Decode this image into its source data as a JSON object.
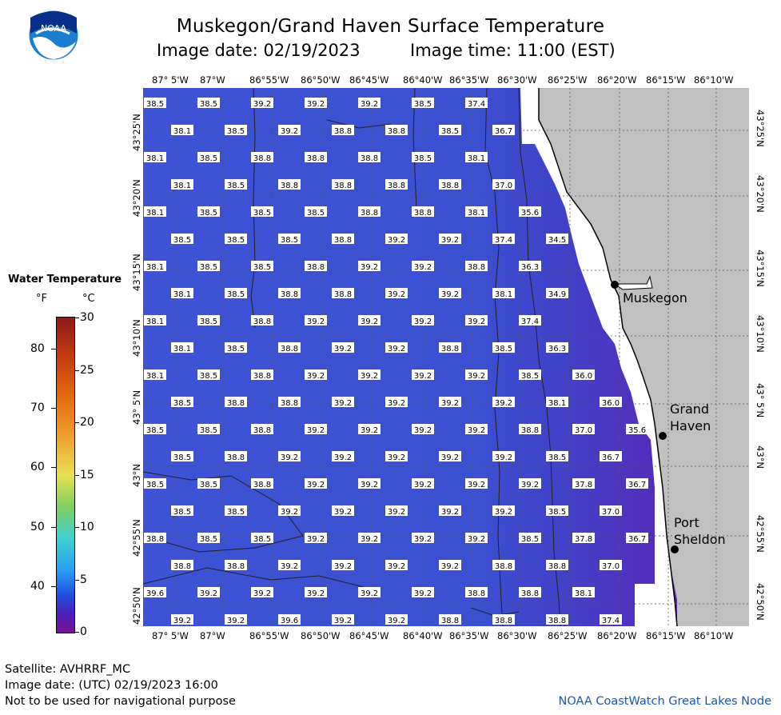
{
  "header": {
    "title": "Muskegon/Grand Haven Surface Temperature",
    "date_line": "Image date: 02/19/2023",
    "time_line": "Image time: 11:00 (EST)"
  },
  "logo": {
    "text": "NOAA"
  },
  "legend": {
    "title": "Water Temperature",
    "unit_f": "°F",
    "unit_c": "°C",
    "f_ticks": [
      "80",
      "70",
      "60",
      "50",
      "40"
    ],
    "c_ticks": [
      "30",
      "25",
      "20",
      "15",
      "10",
      "5",
      "0"
    ]
  },
  "axes": {
    "lon_labels": [
      "87° 5'W",
      "87°W",
      "86°55'W",
      "86°50'W",
      "86°45'W",
      "86°40'W",
      "86°35'W",
      "86°30'W",
      "86°25'W",
      "86°20'W",
      "86°15'W",
      "86°10'W"
    ],
    "lat_labels": [
      "43°25'N",
      "43°20'N",
      "43°15'N",
      "43°10'N",
      "43° 5'N",
      "43°N",
      "42°55'N",
      "42°50'N"
    ]
  },
  "cities": [
    {
      "name": "Muskegon"
    },
    {
      "name": "Grand Haven"
    },
    {
      "name": "Port Sheldon"
    }
  ],
  "temperature_rows": [
    [
      "38.5",
      "38.5",
      "39.2",
      "39.2",
      "39.2",
      "38.5",
      "37.4"
    ],
    [
      "38.1",
      "38.5",
      "39.2",
      "38.8",
      "38.8",
      "38.5",
      "36.7"
    ],
    [
      "38.1",
      "38.5",
      "38.8",
      "38.8",
      "38.8",
      "38.5",
      "38.1"
    ],
    [
      "38.1",
      "38.5",
      "38.8",
      "38.8",
      "38.8",
      "38.8",
      "37.0"
    ],
    [
      "38.1",
      "38.5",
      "38.5",
      "38.5",
      "38.8",
      "38.8",
      "38.1",
      "35.6"
    ],
    [
      "38.5",
      "38.5",
      "38.5",
      "38.8",
      "39.2",
      "39.2",
      "37.4",
      "34.5"
    ],
    [
      "38.1",
      "38.5",
      "38.5",
      "38.8",
      "39.2",
      "39.2",
      "38.8",
      "36.3"
    ],
    [
      "38.1",
      "38.5",
      "38.8",
      "38.8",
      "39.2",
      "39.2",
      "38.1",
      "34.9"
    ],
    [
      "38.1",
      "38.5",
      "38.8",
      "39.2",
      "39.2",
      "39.2",
      "39.2",
      "37.4"
    ],
    [
      "38.1",
      "38.5",
      "38.8",
      "39.2",
      "39.2",
      "38.8",
      "38.5",
      "36.3"
    ],
    [
      "38.1",
      "38.5",
      "38.8",
      "39.2",
      "39.2",
      "39.2",
      "39.2",
      "38.5",
      "36.0"
    ],
    [
      "38.5",
      "38.8",
      "38.8",
      "39.2",
      "39.2",
      "39.2",
      "39.2",
      "38.1",
      "36.0"
    ],
    [
      "38.5",
      "38.5",
      "38.8",
      "39.2",
      "39.2",
      "39.2",
      "39.2",
      "38.8",
      "37.0",
      "35.6"
    ],
    [
      "38.5",
      "38.8",
      "39.2",
      "39.2",
      "39.2",
      "39.2",
      "39.2",
      "38.5",
      "36.7"
    ],
    [
      "38.5",
      "38.5",
      "38.8",
      "39.2",
      "39.2",
      "39.2",
      "39.2",
      "39.2",
      "37.8",
      "36.7"
    ],
    [
      "38.5",
      "38.5",
      "39.2",
      "39.2",
      "39.2",
      "39.2",
      "39.2",
      "38.5",
      "37.0"
    ],
    [
      "38.8",
      "38.5",
      "38.5",
      "39.2",
      "39.2",
      "39.2",
      "39.2",
      "38.5",
      "37.8",
      "36.7"
    ],
    [
      "38.8",
      "38.8",
      "39.2",
      "39.2",
      "39.2",
      "39.2",
      "38.8",
      "38.8",
      "37.0"
    ],
    [
      "39.6",
      "39.2",
      "39.2",
      "39.2",
      "39.2",
      "39.2",
      "38.8",
      "38.8",
      "38.1"
    ],
    [
      "39.2",
      "39.2",
      "39.6",
      "39.2",
      "39.2",
      "38.8",
      "38.8",
      "38.8",
      "37.4"
    ]
  ],
  "footer": {
    "satellite": "Satellite: AVHRRF_MC",
    "utc_date": "Image date: (UTC) 02/19/2023  16:00",
    "disclaimer": "Not to be used for navigational purpose",
    "credit": "NOAA CoastWatch Great Lakes Node"
  },
  "colors": {
    "water": "#3c4fd2",
    "land": "#c0c0c0",
    "near_shore": "#5a2fc0"
  }
}
